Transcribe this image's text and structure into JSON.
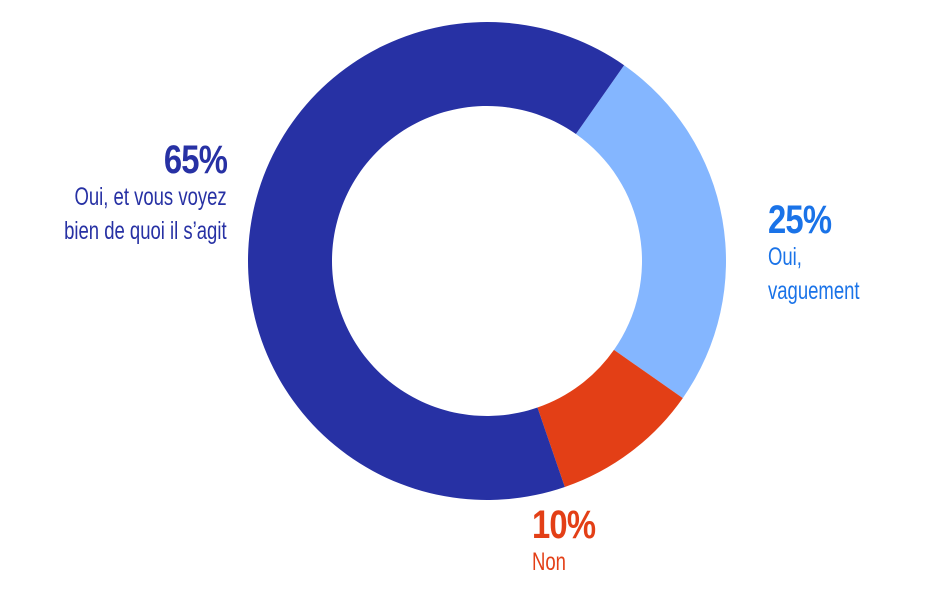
{
  "chart_data": {
    "type": "pie",
    "donut": true,
    "slices": [
      {
        "label": "Oui, vaguement",
        "value": 25,
        "value_label": "25%",
        "color": "#84B6FF",
        "text_color": "#1A73E8"
      },
      {
        "label": "Non",
        "value": 10,
        "value_label": "10%",
        "color": "#E33F16",
        "text_color": "#E33F16"
      },
      {
        "label": "Oui, et vous voyez bien de quoi il s'agit",
        "label_lines": [
          "Oui, et vous voyez",
          "bien de quoi il s’agit"
        ],
        "value": 65,
        "value_label": "65%",
        "color": "#2731A4",
        "text_color": "#2731A4"
      }
    ],
    "start_angle_deg": 35,
    "direction": "clockwise"
  }
}
